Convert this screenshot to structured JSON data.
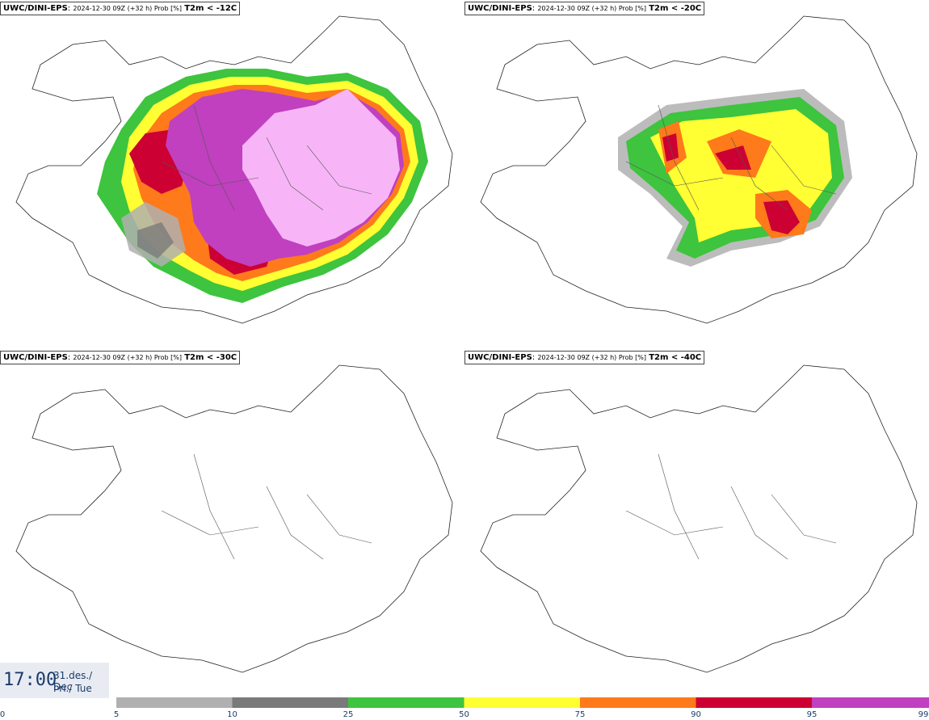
{
  "panels": [
    {
      "model": "UWC/DINI-EPS",
      "run": "2024-12-30 09Z (+32 h) Prob [%]",
      "variable": "T2m < -12C"
    },
    {
      "model": "UWC/DINI-EPS",
      "run": "2024-12-30 09Z (+32 h) Prob [%]",
      "variable": "T2m < -20C"
    },
    {
      "model": "UWC/DINI-EPS",
      "run": "2024-12-30 09Z (+32 h) Prob [%]",
      "variable": "T2m < -30C"
    },
    {
      "model": "UWC/DINI-EPS",
      "run": "2024-12-30 09Z (+32 h) Prob [%]",
      "variable": "T2m < -40C"
    }
  ],
  "valid_time": {
    "time": "17:00",
    "date_line1": "31.des./ Dec",
    "date_line2": "Þri./ Tue"
  },
  "colorbar": {
    "ticks": [
      "0",
      "5",
      "10",
      "25",
      "50",
      "75",
      "90",
      "95",
      "99"
    ],
    "colors": [
      "#b0b0b0",
      "#7a7a7a",
      "#3ec43e",
      "#ffff33",
      "#ff7a1a",
      "#cc0033",
      "#c040c0",
      "#f7b5f7"
    ]
  }
}
